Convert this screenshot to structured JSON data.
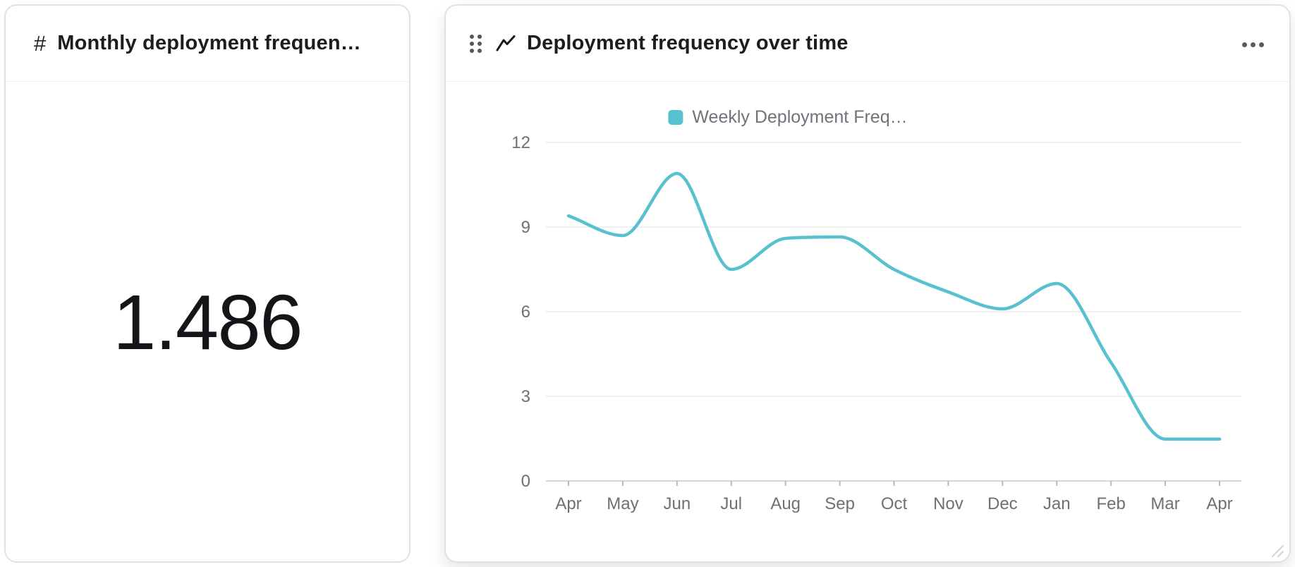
{
  "metric_card": {
    "icon_glyph": "#",
    "title": "Monthly deployment frequen…",
    "value": "1.486"
  },
  "chart_card": {
    "title": "Deployment frequency over time",
    "more_menu_icon": "ellipsis-icon",
    "drag_handle_icon": "drag-handle-icon",
    "type_icon": "trend-line-icon"
  },
  "chart_data": {
    "type": "line",
    "title": "Deployment frequency over time",
    "categories": [
      "Apr",
      "May",
      "Jun",
      "Jul",
      "Aug",
      "Sep",
      "Oct",
      "Nov",
      "Dec",
      "Jan",
      "Feb",
      "Mar",
      "Apr"
    ],
    "series": [
      {
        "name": "Weekly Deployment Freq…",
        "color": "#57c1cf",
        "values": [
          9.4,
          8.7,
          10.9,
          7.5,
          8.6,
          8.65,
          7.5,
          6.7,
          6.1,
          7.0,
          4.2,
          1.486,
          1.486
        ]
      }
    ],
    "xlabel": "",
    "ylabel": "",
    "ylim": [
      0,
      12
    ],
    "yticks": [
      0,
      3,
      6,
      9,
      12
    ],
    "grid": true,
    "smooth": true,
    "legend_position": "top"
  },
  "colors": {
    "accent": "#57c1cf",
    "card_border": "#e0e0e5",
    "grid_line": "#ececef",
    "axis_line": "#d5d5da",
    "axis_text": "#6f6f76",
    "title_text": "#1c1c21"
  }
}
